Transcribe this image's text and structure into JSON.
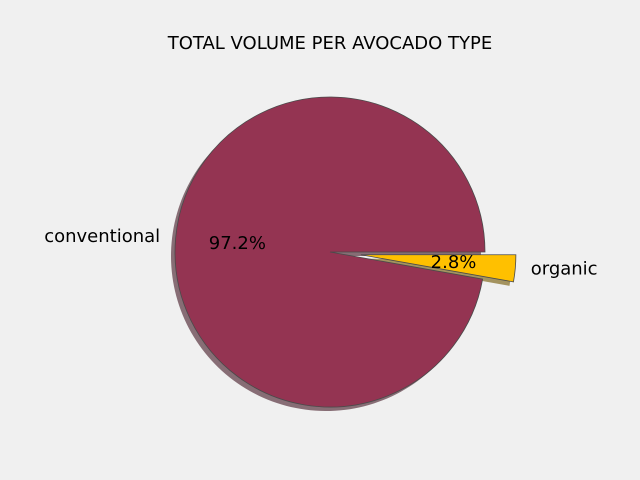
{
  "chart_data": {
    "type": "pie",
    "title": "TOTAL VOLUME PER AVOCADO TYPE",
    "slices": [
      {
        "label": "conventional",
        "value": 97.2,
        "pct_label": "97.2%",
        "color": "#943452",
        "exploded": false
      },
      {
        "label": "organic",
        "value": 2.8,
        "pct_label": "2.8%",
        "color": "#ffc000",
        "exploded": true
      }
    ],
    "shadow": true,
    "edge_color": "#4a4a4a",
    "background": "#f0f0f0"
  }
}
